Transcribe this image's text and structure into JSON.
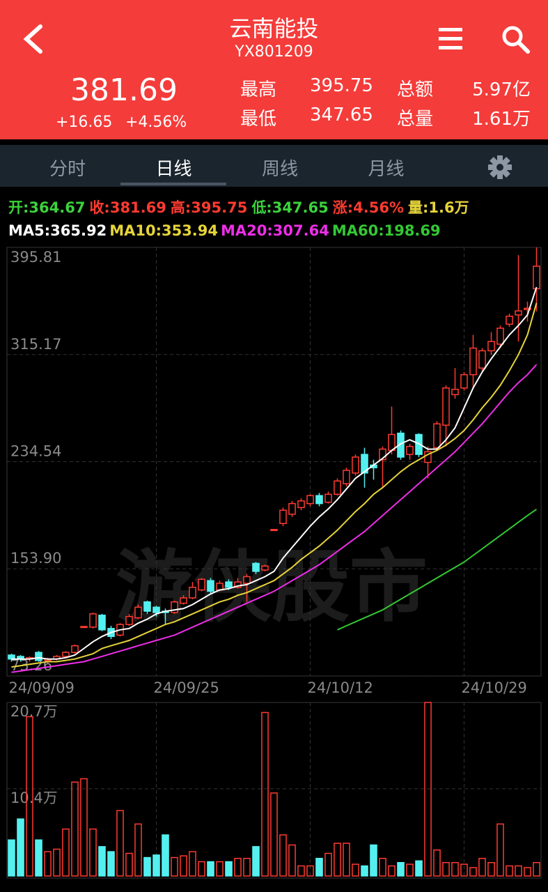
{
  "header": {
    "title": "云南能投",
    "code": "YX801209",
    "price": "381.69",
    "change": "+16.65",
    "change_pct": "+4.56%",
    "stats": [
      [
        "最高",
        "395.75",
        "总额",
        "5.97亿"
      ],
      [
        "最低",
        "347.65",
        "总量",
        "1.61万"
      ]
    ]
  },
  "tabs": [
    "分时",
    "日线",
    "周线",
    "月线"
  ],
  "active_tab": 1,
  "info": [
    {
      "text": "开:364.67",
      "color": "#3cd23c"
    },
    {
      "text": "收:381.69",
      "color": "#ff3b30"
    },
    {
      "text": "高:395.75",
      "color": "#ff3b30"
    },
    {
      "text": "低:347.65",
      "color": "#3cd23c"
    },
    {
      "text": "涨:4.56%",
      "color": "#ff3b30"
    },
    {
      "text": "量:1.6万",
      "color": "#e6d43a"
    }
  ],
  "chart_data": {
    "type": "candlestick",
    "watermark": "游侠股市",
    "categories": [
      "24/09/09",
      null,
      null,
      null,
      null,
      null,
      null,
      null,
      null,
      null,
      null,
      null,
      null,
      null,
      null,
      null,
      "24/09/25",
      null,
      null,
      null,
      null,
      null,
      null,
      null,
      null,
      null,
      null,
      null,
      null,
      null,
      null,
      null,
      null,
      "24/10/12",
      null,
      null,
      null,
      null,
      null,
      null,
      null,
      null,
      null,
      null,
      null,
      null,
      null,
      null,
      null,
      null,
      "24/10/29",
      null,
      null,
      null,
      null,
      null,
      null,
      null,
      null
    ],
    "open": [
      89,
      88,
      86,
      91,
      85,
      86,
      88,
      91,
      110,
      110,
      119,
      109,
      104,
      112,
      117,
      129,
      125,
      122,
      121,
      128,
      132,
      138,
      145,
      138,
      144,
      140,
      143,
      158,
      153,
      183,
      188,
      195,
      200,
      203,
      209,
      204,
      210,
      218,
      226,
      240,
      232,
      236,
      243,
      256,
      240,
      255,
      234,
      245,
      262,
      285,
      290,
      300,
      305,
      318,
      323,
      338,
      345,
      349,
      364.67
    ],
    "close": [
      86,
      86,
      87,
      85,
      86,
      88,
      91,
      96,
      110.5,
      120,
      108,
      103,
      112,
      118,
      125,
      122,
      121,
      121,
      129,
      132,
      140,
      146,
      137,
      143,
      140,
      144,
      148,
      152,
      156,
      183.5,
      198,
      203,
      205,
      209,
      203,
      210,
      220,
      228,
      238,
      226,
      230,
      244,
      255,
      238,
      246,
      240,
      242,
      263,
      290,
      289,
      300,
      320,
      318,
      325,
      335,
      344,
      348,
      350,
      381.69
    ],
    "high": [
      90,
      89,
      88,
      92,
      87,
      89,
      92,
      97,
      111,
      121,
      120,
      111,
      113,
      120,
      127,
      130,
      126,
      124,
      130,
      134,
      144,
      147,
      147,
      145,
      146,
      147,
      150,
      159,
      157,
      184,
      200,
      205,
      207,
      210,
      211,
      212,
      222,
      230,
      240,
      245,
      236,
      246,
      276,
      258,
      248,
      256,
      246,
      265,
      292,
      305,
      302,
      330,
      320,
      332,
      337,
      346,
      390,
      355,
      395.75
    ],
    "low": [
      84,
      84,
      84,
      84,
      83,
      85,
      87,
      90,
      109.5,
      109,
      107,
      101,
      103,
      111,
      116,
      120,
      118,
      112,
      120,
      127,
      131,
      137,
      135,
      137,
      138,
      139,
      129,
      150,
      152,
      183,
      186,
      193,
      198,
      201,
      201,
      203,
      209,
      216,
      224,
      215,
      221,
      215,
      240,
      236,
      236,
      238,
      222,
      243,
      246,
      282,
      288,
      290,
      303,
      315,
      320,
      336,
      325,
      340,
      347.65
    ],
    "up_color": "#ff3b30",
    "down_color": "#54f0f0",
    "ylim": [
      73.26,
      395.81
    ],
    "yticks": [
      73.26,
      {
        "value": 153.9,
        "label": "153.90"
      },
      234.54,
      315.17,
      395.81
    ],
    "grid": true,
    "lines": [
      {
        "name": "MA5",
        "label": "MA5:365.92",
        "color": "#ffffff",
        "values": [
          86,
          86,
          86,
          87,
          86,
          86,
          87,
          89,
          94,
          99,
          103,
          106,
          108,
          109,
          113,
          116,
          120,
          122,
          123,
          124,
          127,
          131,
          135,
          138,
          139,
          141,
          142,
          145,
          148,
          152,
          162,
          170,
          178,
          186,
          193,
          199,
          206,
          214,
          222,
          227,
          232,
          237,
          243,
          248,
          251,
          248,
          244,
          244,
          251,
          260,
          275,
          290,
          302,
          312,
          321,
          330,
          337,
          345,
          365.92
        ]
      },
      {
        "name": "MA10",
        "label": "MA10:353.94",
        "color": "#e6d43a",
        "values": [
          80,
          81,
          82,
          83,
          84,
          84,
          85,
          86,
          88,
          90,
          94,
          96,
          98,
          100,
          103,
          106,
          109,
          112,
          114,
          117,
          120,
          123,
          126,
          129,
          131,
          134,
          136,
          139,
          142,
          145,
          150,
          155,
          161,
          166,
          171,
          177,
          183,
          190,
          197,
          203,
          210,
          215,
          221,
          227,
          232,
          236,
          240,
          243,
          247,
          252,
          258,
          266,
          275,
          283,
          292,
          303,
          315,
          330,
          353.94
        ]
      },
      {
        "name": "MA20",
        "label": "MA20:307.64",
        "color": "#ee2ee8",
        "values": [
          76,
          77,
          78,
          79,
          80,
          81,
          82,
          83,
          84,
          86,
          88,
          90,
          92,
          94,
          96,
          98,
          100,
          102,
          104,
          107,
          110,
          113,
          116,
          119,
          122,
          125,
          128,
          131,
          134,
          137,
          141,
          145,
          149,
          153,
          157,
          162,
          167,
          172,
          177,
          182,
          188,
          194,
          200,
          206,
          212,
          218,
          224,
          230,
          236,
          242,
          249,
          256,
          263,
          271,
          279,
          287,
          294,
          300,
          307.64
        ]
      },
      {
        "name": "MA60",
        "label": "MA60:198.69",
        "color": "#33c833",
        "values": [
          null,
          null,
          null,
          null,
          null,
          null,
          null,
          null,
          null,
          null,
          null,
          null,
          null,
          null,
          null,
          null,
          null,
          null,
          null,
          null,
          null,
          null,
          null,
          null,
          null,
          null,
          null,
          null,
          null,
          null,
          null,
          null,
          null,
          null,
          null,
          null,
          108,
          111,
          114,
          117,
          120,
          123,
          127,
          131,
          135,
          139,
          143,
          147,
          151,
          155,
          159,
          164,
          169,
          174,
          179,
          184,
          189,
          194,
          198.69
        ]
      }
    ],
    "volume": {
      "values": [
        4.3,
        6.8,
        19.0,
        4.3,
        2.9,
        3.2,
        5.6,
        11.2,
        11.6,
        5.6,
        3.5,
        2.9,
        7.8,
        2.7,
        6.2,
        2.2,
        2.5,
        4.9,
        2.2,
        2.4,
        2.9,
        1.7,
        1.7,
        1.7,
        1.7,
        2.1,
        2.1,
        3.5,
        19.5,
        9.9,
        4.9,
        3.7,
        1.2,
        1.2,
        2.1,
        2.7,
        3.9,
        3.9,
        1.4,
        1.2,
        3.7,
        2.1,
        1.2,
        1.6,
        1.4,
        1.8,
        20.7,
        3.1,
        1.6,
        1.6,
        1.4,
        1.0,
        2.1,
        1.6,
        6.2,
        1.2,
        1.2,
        1.0,
        1.6
      ],
      "ylim": [
        0,
        20.7
      ],
      "yticks": [
        {
          "value": 10.4,
          "label": "10.4万"
        },
        {
          "value": 20.7,
          "label": "20.7万"
        }
      ]
    }
  }
}
